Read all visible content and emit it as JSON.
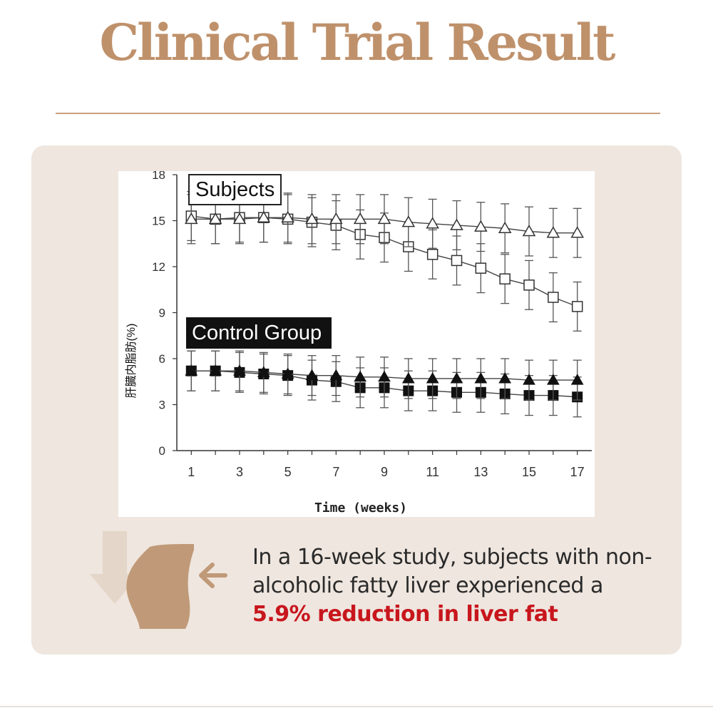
{
  "page": {
    "title": "Clinical Trial Result",
    "caption_lines": [
      "In a 16-week study, subjects with non-",
      "alcoholic fatty liver experienced a"
    ],
    "caption_highlight": "5.9% reduction in liver fat",
    "colors": {
      "title": "#bf916b",
      "panel": "#efe6df",
      "highlight": "#c8161d",
      "icon_body": "#c09a78",
      "icon_arrow": "#e4d6c8"
    },
    "icons": [
      "down-arrow-icon",
      "waist-silhouette-icon",
      "pointing-arrow-icon"
    ]
  },
  "chart_data": {
    "type": "line",
    "xlabel": "Time (weeks)",
    "ylabel": "肝臓内脂肪(%)",
    "xlim": [
      0.4,
      17.6
    ],
    "ylim": [
      0,
      18
    ],
    "x_ticks": [
      1,
      3,
      5,
      7,
      9,
      11,
      13,
      15,
      17
    ],
    "y_ticks": [
      0,
      3,
      6,
      9,
      12,
      15,
      18
    ],
    "legend": [
      "Subjects",
      "Control Group"
    ],
    "x": [
      1,
      2,
      3,
      4,
      5,
      6,
      7,
      8,
      9,
      10,
      11,
      12,
      13,
      14,
      15,
      16,
      17
    ],
    "series": [
      {
        "marker": "open-square",
        "group": "Subjects",
        "values": [
          15.3,
          15.1,
          15.2,
          15.2,
          15.1,
          14.9,
          14.7,
          14.1,
          13.9,
          13.3,
          12.8,
          12.4,
          11.9,
          11.2,
          10.8,
          10.0,
          9.4
        ],
        "errors": [
          1.6,
          1.6,
          1.6,
          1.6,
          1.6,
          1.6,
          1.6,
          1.6,
          1.6,
          1.6,
          1.6,
          1.6,
          1.6,
          1.6,
          1.6,
          1.6,
          1.6
        ]
      },
      {
        "marker": "open-triangle",
        "group": "Subjects",
        "values": [
          15.1,
          15.1,
          15.1,
          15.2,
          15.2,
          15.1,
          15.1,
          15.1,
          15.1,
          14.9,
          14.8,
          14.7,
          14.6,
          14.5,
          14.3,
          14.2,
          14.2
        ],
        "errors": [
          1.6,
          1.6,
          1.6,
          1.6,
          1.6,
          1.6,
          1.6,
          1.6,
          1.6,
          1.6,
          1.6,
          1.6,
          1.6,
          1.6,
          1.6,
          1.6,
          1.6
        ]
      },
      {
        "marker": "filled-square",
        "group": "Control Group",
        "values": [
          5.2,
          5.2,
          5.1,
          5.0,
          4.9,
          4.6,
          4.5,
          4.1,
          4.1,
          3.9,
          3.9,
          3.8,
          3.8,
          3.7,
          3.6,
          3.6,
          3.5
        ],
        "errors": [
          1.3,
          1.3,
          1.3,
          1.3,
          1.3,
          1.3,
          1.3,
          1.3,
          1.3,
          1.3,
          1.3,
          1.3,
          1.3,
          1.3,
          1.3,
          1.3,
          1.3
        ]
      },
      {
        "marker": "filled-triangle",
        "group": "Control Group",
        "values": [
          5.2,
          5.2,
          5.2,
          5.1,
          5.0,
          4.9,
          4.9,
          4.8,
          4.8,
          4.7,
          4.7,
          4.7,
          4.7,
          4.7,
          4.6,
          4.6,
          4.6
        ],
        "errors": [
          1.3,
          1.3,
          1.3,
          1.3,
          1.3,
          1.3,
          1.3,
          1.3,
          1.3,
          1.3,
          1.3,
          1.3,
          1.3,
          1.3,
          1.3,
          1.3,
          1.3
        ]
      }
    ]
  }
}
